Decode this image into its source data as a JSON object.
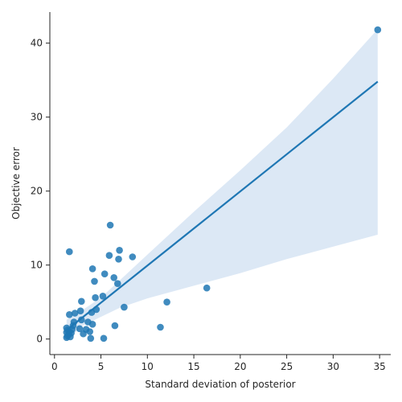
{
  "chart_data": {
    "type": "scatter",
    "title": "",
    "xlabel": "Standard deviation of posterior",
    "ylabel": "Objective error",
    "xlim": [
      -0.5,
      36.2
    ],
    "ylim": [
      -2.1,
      44.2
    ],
    "xticks": [
      0,
      5,
      10,
      15,
      20,
      25,
      30,
      35
    ],
    "yticks": [
      0,
      10,
      20,
      30,
      40
    ],
    "grid": false,
    "colors": {
      "points": "#1f77b4",
      "line": "#1f77b4",
      "band": "#c9dcef",
      "axis": "#262626"
    },
    "points": [
      {
        "x": 1.3,
        "y": 0.2
      },
      {
        "x": 1.4,
        "y": 0.4
      },
      {
        "x": 1.5,
        "y": 0.6
      },
      {
        "x": 1.3,
        "y": 0.9
      },
      {
        "x": 1.6,
        "y": 1.0
      },
      {
        "x": 1.4,
        "y": 1.2
      },
      {
        "x": 1.3,
        "y": 1.5
      },
      {
        "x": 1.7,
        "y": 0.3
      },
      {
        "x": 1.8,
        "y": 0.8
      },
      {
        "x": 1.9,
        "y": 1.3
      },
      {
        "x": 2.0,
        "y": 1.8
      },
      {
        "x": 2.1,
        "y": 2.3
      },
      {
        "x": 1.6,
        "y": 3.3
      },
      {
        "x": 2.2,
        "y": 3.5
      },
      {
        "x": 2.7,
        "y": 1.4
      },
      {
        "x": 2.9,
        "y": 2.6
      },
      {
        "x": 3.1,
        "y": 0.7
      },
      {
        "x": 3.4,
        "y": 1.3
      },
      {
        "x": 3.6,
        "y": 2.3
      },
      {
        "x": 2.8,
        "y": 3.8
      },
      {
        "x": 2.9,
        "y": 5.1
      },
      {
        "x": 3.8,
        "y": 1.0
      },
      {
        "x": 3.9,
        "y": 0.1
      },
      {
        "x": 4.1,
        "y": 2.0
      },
      {
        "x": 4.0,
        "y": 3.6
      },
      {
        "x": 4.5,
        "y": 4.0
      },
      {
        "x": 4.4,
        "y": 5.6
      },
      {
        "x": 4.3,
        "y": 7.8
      },
      {
        "x": 4.1,
        "y": 9.5
      },
      {
        "x": 5.3,
        "y": 0.1
      },
      {
        "x": 5.2,
        "y": 5.8
      },
      {
        "x": 5.4,
        "y": 8.8
      },
      {
        "x": 1.6,
        "y": 11.8
      },
      {
        "x": 5.9,
        "y": 11.3
      },
      {
        "x": 6.0,
        "y": 15.4
      },
      {
        "x": 6.4,
        "y": 8.3
      },
      {
        "x": 6.8,
        "y": 7.5
      },
      {
        "x": 6.9,
        "y": 10.8
      },
      {
        "x": 7.0,
        "y": 12.0
      },
      {
        "x": 8.4,
        "y": 11.1
      },
      {
        "x": 6.5,
        "y": 1.8
      },
      {
        "x": 7.5,
        "y": 4.3
      },
      {
        "x": 11.4,
        "y": 1.6
      },
      {
        "x": 12.1,
        "y": 5.0
      },
      {
        "x": 16.4,
        "y": 6.9
      },
      {
        "x": 34.8,
        "y": 41.8
      }
    ],
    "fit_line": [
      {
        "x": 1.3,
        "y": 1.2
      },
      {
        "x": 34.8,
        "y": 34.8
      }
    ],
    "confidence_band": {
      "upper": [
        {
          "x": 1.3,
          "y": 2.6
        },
        {
          "x": 3.0,
          "y": 3.9
        },
        {
          "x": 5.0,
          "y": 5.6
        },
        {
          "x": 7.0,
          "y": 7.9
        },
        {
          "x": 10.0,
          "y": 11.4
        },
        {
          "x": 15.0,
          "y": 17.2
        },
        {
          "x": 20.0,
          "y": 22.8
        },
        {
          "x": 25.0,
          "y": 28.6
        },
        {
          "x": 30.0,
          "y": 35.2
        },
        {
          "x": 34.8,
          "y": 41.9
        }
      ],
      "lower": [
        {
          "x": 34.8,
          "y": 14.1
        },
        {
          "x": 30.0,
          "y": 12.5
        },
        {
          "x": 25.0,
          "y": 10.8
        },
        {
          "x": 20.0,
          "y": 8.9
        },
        {
          "x": 15.0,
          "y": 7.2
        },
        {
          "x": 10.0,
          "y": 5.5
        },
        {
          "x": 7.0,
          "y": 4.2
        },
        {
          "x": 5.0,
          "y": 3.0
        },
        {
          "x": 3.0,
          "y": 1.8
        },
        {
          "x": 1.3,
          "y": -0.3
        }
      ]
    }
  }
}
